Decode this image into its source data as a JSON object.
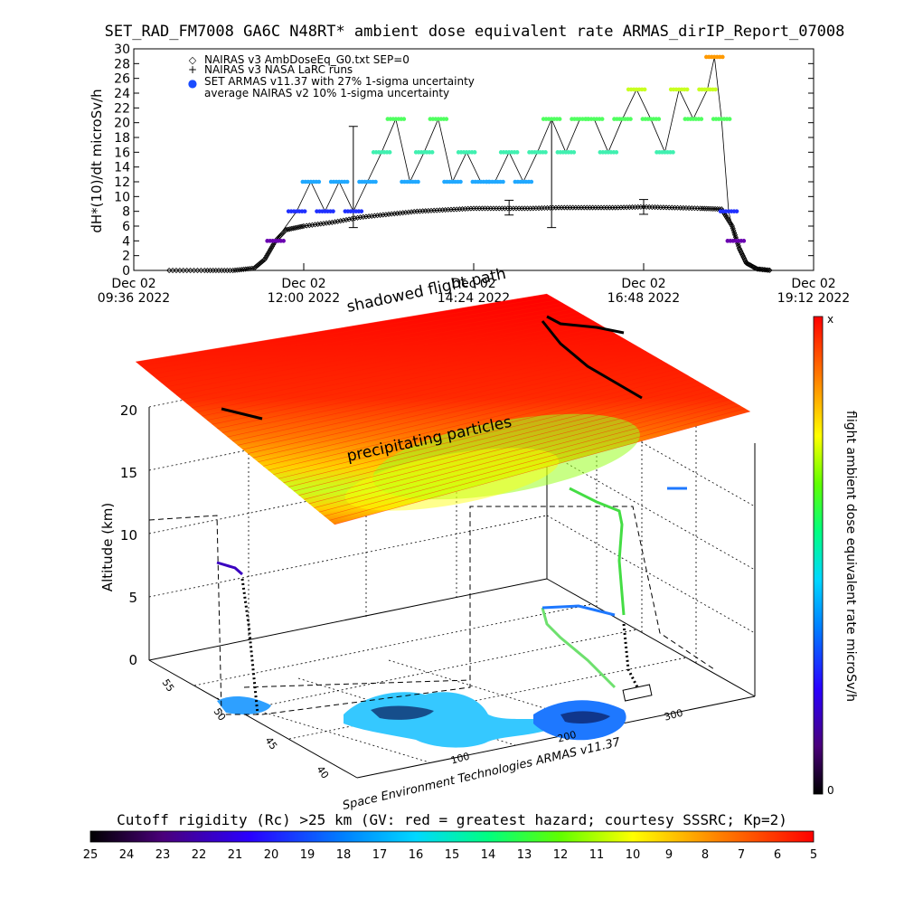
{
  "title": "SET_RAD_FM7008  GA6C N48RT* ambient dose equivalent rate ARMAS_dirIP_Report_07008",
  "chart_data": [
    {
      "type": "scatter",
      "ylabel": "dH*(10)/dt microSv/h",
      "ylim": [
        0,
        30
      ],
      "yticks": [
        0,
        2,
        4,
        6,
        8,
        10,
        12,
        14,
        16,
        18,
        20,
        22,
        24,
        26,
        28,
        30
      ],
      "xlim_hours": [
        9.6,
        19.2
      ],
      "xticks": [
        {
          "h": 9.6,
          "line1": "Dec 02",
          "line2": "09:36 2022"
        },
        {
          "h": 12.0,
          "line1": "Dec 02",
          "line2": "12:00 2022"
        },
        {
          "h": 14.4,
          "line1": "Dec 02",
          "line2": "14:24 2022"
        },
        {
          "h": 16.8,
          "line1": "Dec 02",
          "line2": "16:48 2022"
        },
        {
          "h": 19.2,
          "line1": "Dec 02",
          "line2": "19:12 2022"
        }
      ],
      "legend": {
        "placement": "top-left",
        "entries": [
          {
            "symbol": "◇",
            "label": "NAIRAS v3 AmbDoseEq_G0.txt SEP=0"
          },
          {
            "symbol": "+",
            "label": "NAIRAS v3 NASA LaRC runs"
          },
          {
            "symbol": "●",
            "label": "SET ARMAS v11.37 with 27% 1-sigma uncertainty",
            "color": "#1a4cff"
          },
          {
            "symbol": "",
            "label": "average NAIRAS v2 10% 1-sigma uncertainty"
          }
        ]
      },
      "series": [
        {
          "name": "NAIRAS v3 AmbDoseEq_G0.txt SEP=0",
          "points": [
            [
              10.1,
              0
            ],
            [
              10.6,
              0
            ],
            [
              11.0,
              0
            ],
            [
              11.3,
              0.3
            ],
            [
              11.45,
              1.5
            ],
            [
              11.6,
              4
            ],
            [
              11.75,
              5.5
            ],
            [
              12.0,
              6
            ],
            [
              12.4,
              6.5
            ],
            [
              12.8,
              7.2
            ],
            [
              13.2,
              7.6
            ],
            [
              13.6,
              8
            ],
            [
              14.0,
              8.2
            ],
            [
              14.4,
              8.4
            ],
            [
              14.8,
              8.4
            ],
            [
              15.2,
              8.4
            ],
            [
              15.6,
              8.5
            ],
            [
              16.0,
              8.5
            ],
            [
              16.4,
              8.5
            ],
            [
              16.8,
              8.6
            ],
            [
              17.2,
              8.5
            ],
            [
              17.6,
              8.4
            ],
            [
              17.9,
              8.3
            ],
            [
              18.05,
              6
            ],
            [
              18.15,
              3
            ],
            [
              18.25,
              1
            ],
            [
              18.4,
              0.2
            ],
            [
              18.6,
              0
            ]
          ]
        },
        {
          "name": "SET ARMAS v11.37 with 27% 1-sigma uncertainty",
          "points": [
            [
              11.6,
              4
            ],
            [
              11.9,
              8
            ],
            [
              12.1,
              12
            ],
            [
              12.3,
              8
            ],
            [
              12.5,
              12
            ],
            [
              12.7,
              8
            ],
            [
              12.9,
              12
            ],
            [
              13.1,
              16
            ],
            [
              13.3,
              20.5
            ],
            [
              13.5,
              12
            ],
            [
              13.7,
              16
            ],
            [
              13.9,
              20.5
            ],
            [
              14.1,
              12
            ],
            [
              14.3,
              16
            ],
            [
              14.5,
              12
            ],
            [
              14.7,
              12
            ],
            [
              14.9,
              16
            ],
            [
              15.1,
              12
            ],
            [
              15.3,
              16
            ],
            [
              15.5,
              20.5
            ],
            [
              15.7,
              16
            ],
            [
              15.9,
              20.5
            ],
            [
              16.1,
              20.5
            ],
            [
              16.3,
              16
            ],
            [
              16.5,
              20.5
            ],
            [
              16.7,
              24.5
            ],
            [
              16.9,
              20.5
            ],
            [
              17.1,
              16
            ],
            [
              17.3,
              24.5
            ],
            [
              17.5,
              20.5
            ],
            [
              17.7,
              24.5
            ],
            [
              17.8,
              28.9
            ],
            [
              17.9,
              20.5
            ],
            [
              18.0,
              8
            ],
            [
              18.1,
              4
            ]
          ]
        }
      ],
      "errorbars": [
        {
          "h": 12.7,
          "lo": 5.8,
          "hi": 19.5
        },
        {
          "h": 14.9,
          "lo": 7.5,
          "hi": 9.5
        },
        {
          "h": 15.5,
          "lo": 5.8,
          "hi": 20.5
        },
        {
          "h": 16.8,
          "lo": 7.6,
          "hi": 9.6
        }
      ]
    },
    {
      "type": "scatter",
      "zlabel": "Altitude (km)",
      "zticks": [
        0,
        5,
        10,
        15,
        20
      ],
      "lat_ticks": [
        55,
        50,
        45,
        40
      ],
      "lon_ticks": [
        100,
        200,
        300
      ],
      "annotations": [
        "shadowed flight path",
        "precipitating particles"
      ],
      "colorbar": {
        "label": "flight ambient dose equivalent rate microSv/h",
        "top": "x",
        "bottom": "0"
      },
      "credit": "Space Environment Technologies ARMAS v11.37"
    },
    {
      "type": "heatmap",
      "title": "Cutoff rigidity (Rc) >25 km (GV: red = greatest hazard; courtesy SSSRC; Kp=2)",
      "ticks": [
        25,
        24,
        23,
        22,
        21,
        20,
        19,
        18,
        17,
        16,
        15,
        14,
        13,
        12,
        11,
        10,
        9,
        8,
        7,
        6,
        5
      ]
    }
  ],
  "colors": {
    "nairas_v3": "#000000",
    "armas_marker": "#1a4cff",
    "legend_blue": "#1a4cff",
    "colorscale": [
      "#000000",
      "#3a0060",
      "#5a00b0",
      "#2a10ff",
      "#0060ff",
      "#00c8ff",
      "#00e8b0",
      "#00ff00",
      "#b8ff00",
      "#ffff00",
      "#ffc000",
      "#ff7000",
      "#ff0000"
    ]
  }
}
